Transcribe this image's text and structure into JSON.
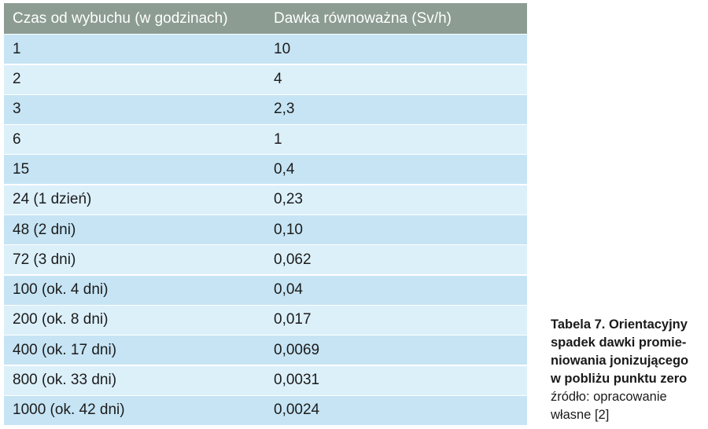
{
  "table": {
    "headers": [
      "Czas od wybuchu (w godzinach)",
      "Dawka równoważna (Sv/h)"
    ],
    "rows": [
      [
        "1",
        "10"
      ],
      [
        "2",
        "4"
      ],
      [
        "3",
        "2,3"
      ],
      [
        "6",
        "1"
      ],
      [
        "15",
        "0,4"
      ],
      [
        "24 (1 dzień)",
        "0,23"
      ],
      [
        "48 (2 dni)",
        "0,10"
      ],
      [
        "72 (3 dni)",
        "0,062"
      ],
      [
        "100 (ok. 4 dni)",
        "0,04"
      ],
      [
        "200 (ok. 8 dni)",
        "0,017"
      ],
      [
        "400 (ok. 17 dni)",
        "0,0069"
      ],
      [
        "800 (ok. 33 dni)",
        "0,0031"
      ],
      [
        "1000 (ok. 42 dni)",
        "0,0024"
      ]
    ]
  },
  "caption": {
    "title_lines": [
      "Tabela 7. Orientacyjny",
      "spadek dawki promie-",
      "niowania jonizującego",
      "w pobliżu punktu zero"
    ],
    "source_lines": [
      "źródło: opracowanie",
      "własne [2]"
    ]
  },
  "colors": {
    "header_bg": "#8c9c92",
    "row_odd": "#c6e4f4",
    "row_even": "#dcf0fa"
  }
}
